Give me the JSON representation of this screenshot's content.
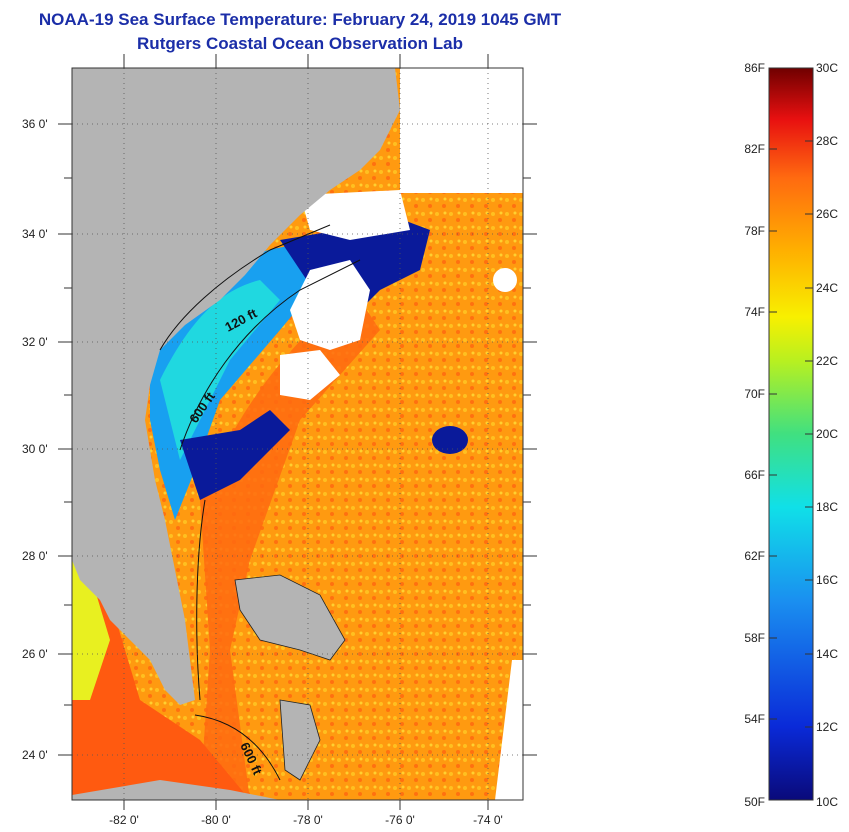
{
  "title": {
    "line1": "NOAA-19 Sea Surface Temperature:  February 24, 2019 1045 GMT",
    "line2": "Rutgers Coastal Ocean Observation Lab"
  },
  "map": {
    "lat_labels": [
      "36 0'",
      "34 0'",
      "32 0'",
      "30 0'",
      "28 0'",
      "26 0'",
      "24 0'"
    ],
    "lon_labels": [
      "-82 0'",
      "-80 0'",
      "-78 0'",
      "-76 0'",
      "-74 0'"
    ],
    "contour_labels": [
      "120 ft",
      "600 ft",
      "600 ft"
    ]
  },
  "colorbar": {
    "fahrenheit": [
      "86F",
      "82F",
      "78F",
      "74F",
      "70F",
      "66F",
      "62F",
      "58F",
      "54F",
      "50F"
    ],
    "celsius": [
      "30C",
      "28C",
      "26C",
      "24C",
      "22C",
      "20C",
      "18C",
      "16C",
      "14C",
      "12C",
      "10C"
    ],
    "range_f": [
      50,
      86
    ],
    "range_c": [
      10,
      30
    ]
  },
  "colors": {
    "title": "#1b2ea8",
    "land": "#b4b4b4",
    "cloud": "#ffffff",
    "warm_water": "#ff8a10",
    "cold_water": "#0a1a9a"
  }
}
